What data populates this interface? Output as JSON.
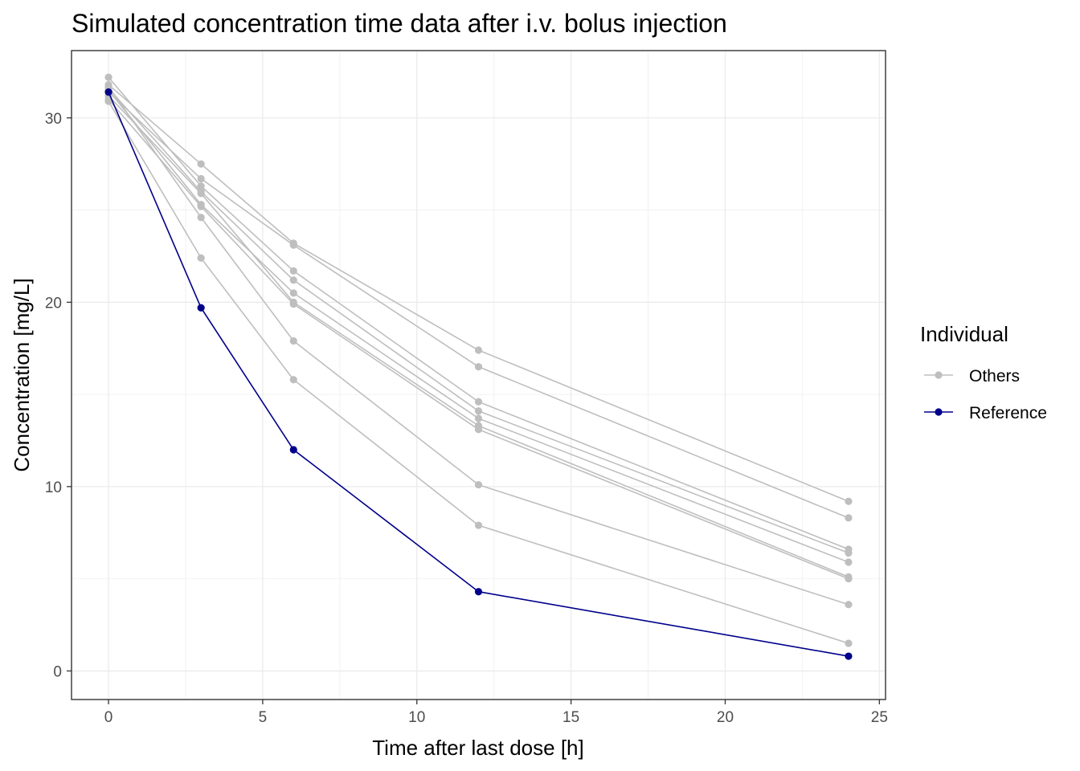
{
  "chart_data": {
    "type": "line",
    "title": "Simulated concentration time data after i.v. bolus injection",
    "xlabel": "Time after last dose [h]",
    "ylabel": "Concentration [mg/L]",
    "x": [
      0,
      3,
      6,
      12,
      24
    ],
    "xlim": [
      -1.2,
      25.2
    ],
    "ylim": [
      -1.55,
      33.65
    ],
    "xticks": [
      0,
      5,
      10,
      15,
      20,
      25
    ],
    "yticks": [
      0,
      10,
      20,
      30
    ],
    "xtick_labels": [
      "0",
      "5",
      "10",
      "15",
      "20",
      "25"
    ],
    "ytick_labels": [
      "0",
      "10",
      "20",
      "30"
    ],
    "grid": true,
    "legend": {
      "title": "Individual",
      "position": "right",
      "entries": [
        {
          "label": "Others",
          "color": "#bebebe"
        },
        {
          "label": "Reference",
          "color": "#00008b"
        }
      ]
    },
    "series": [
      {
        "group": "Others",
        "color": "#bebebe",
        "values": [
          31.8,
          27.5,
          23.2,
          17.4,
          9.2
        ]
      },
      {
        "group": "Others",
        "color": "#bebebe",
        "values": [
          31.4,
          26.7,
          23.1,
          16.5,
          8.3
        ]
      },
      {
        "group": "Others",
        "color": "#bebebe",
        "values": [
          32.2,
          26.3,
          21.7,
          14.6,
          6.6
        ]
      },
      {
        "group": "Others",
        "color": "#bebebe",
        "values": [
          31.6,
          26.0,
          21.2,
          14.1,
          6.4
        ]
      },
      {
        "group": "Others",
        "color": "#bebebe",
        "values": [
          31.5,
          25.3,
          20.5,
          13.7,
          5.9
        ]
      },
      {
        "group": "Others",
        "color": "#bebebe",
        "values": [
          31.2,
          25.9,
          20.0,
          13.3,
          5.1
        ]
      },
      {
        "group": "Others",
        "color": "#bebebe",
        "values": [
          31.0,
          25.2,
          19.9,
          13.1,
          5.0
        ]
      },
      {
        "group": "Others",
        "color": "#bebebe",
        "values": [
          31.7,
          24.6,
          17.9,
          10.1,
          3.6
        ]
      },
      {
        "group": "Others",
        "color": "#bebebe",
        "values": [
          30.9,
          22.4,
          15.8,
          7.9,
          1.5
        ]
      },
      {
        "group": "Reference",
        "color": "#00008b",
        "values": [
          31.4,
          19.7,
          12.0,
          4.3,
          0.8
        ]
      }
    ]
  }
}
